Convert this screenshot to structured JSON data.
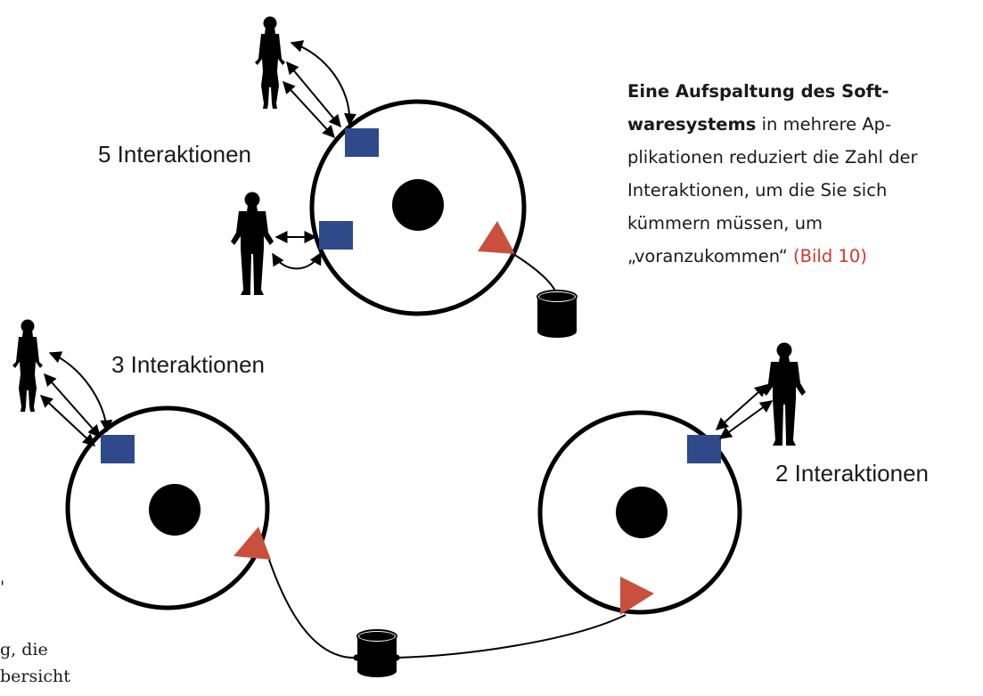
{
  "labels": {
    "top": "5 Interaktionen",
    "left": "3 Interaktionen",
    "right": "2 Interaktionen"
  },
  "caption": {
    "bold_text": "Eine Aufspaltung des Soft-waresystems",
    "text": " in mehrere Ap-plikationen reduziert die Zahl der Interaktionen, um die Sie sich kümmern müssen, um „voranzukommen“ ",
    "figure_ref": "(Bild 10)"
  },
  "body_fragments": {
    "line1": "'",
    "line2": "g, die",
    "line3": "bersicht"
  },
  "colors": {
    "interface_square": "#2f4a8a",
    "triangle": "#c8503c",
    "stroke": "#000000"
  },
  "icons": [
    "person-silhouette-icon",
    "database-cylinder-icon"
  ]
}
